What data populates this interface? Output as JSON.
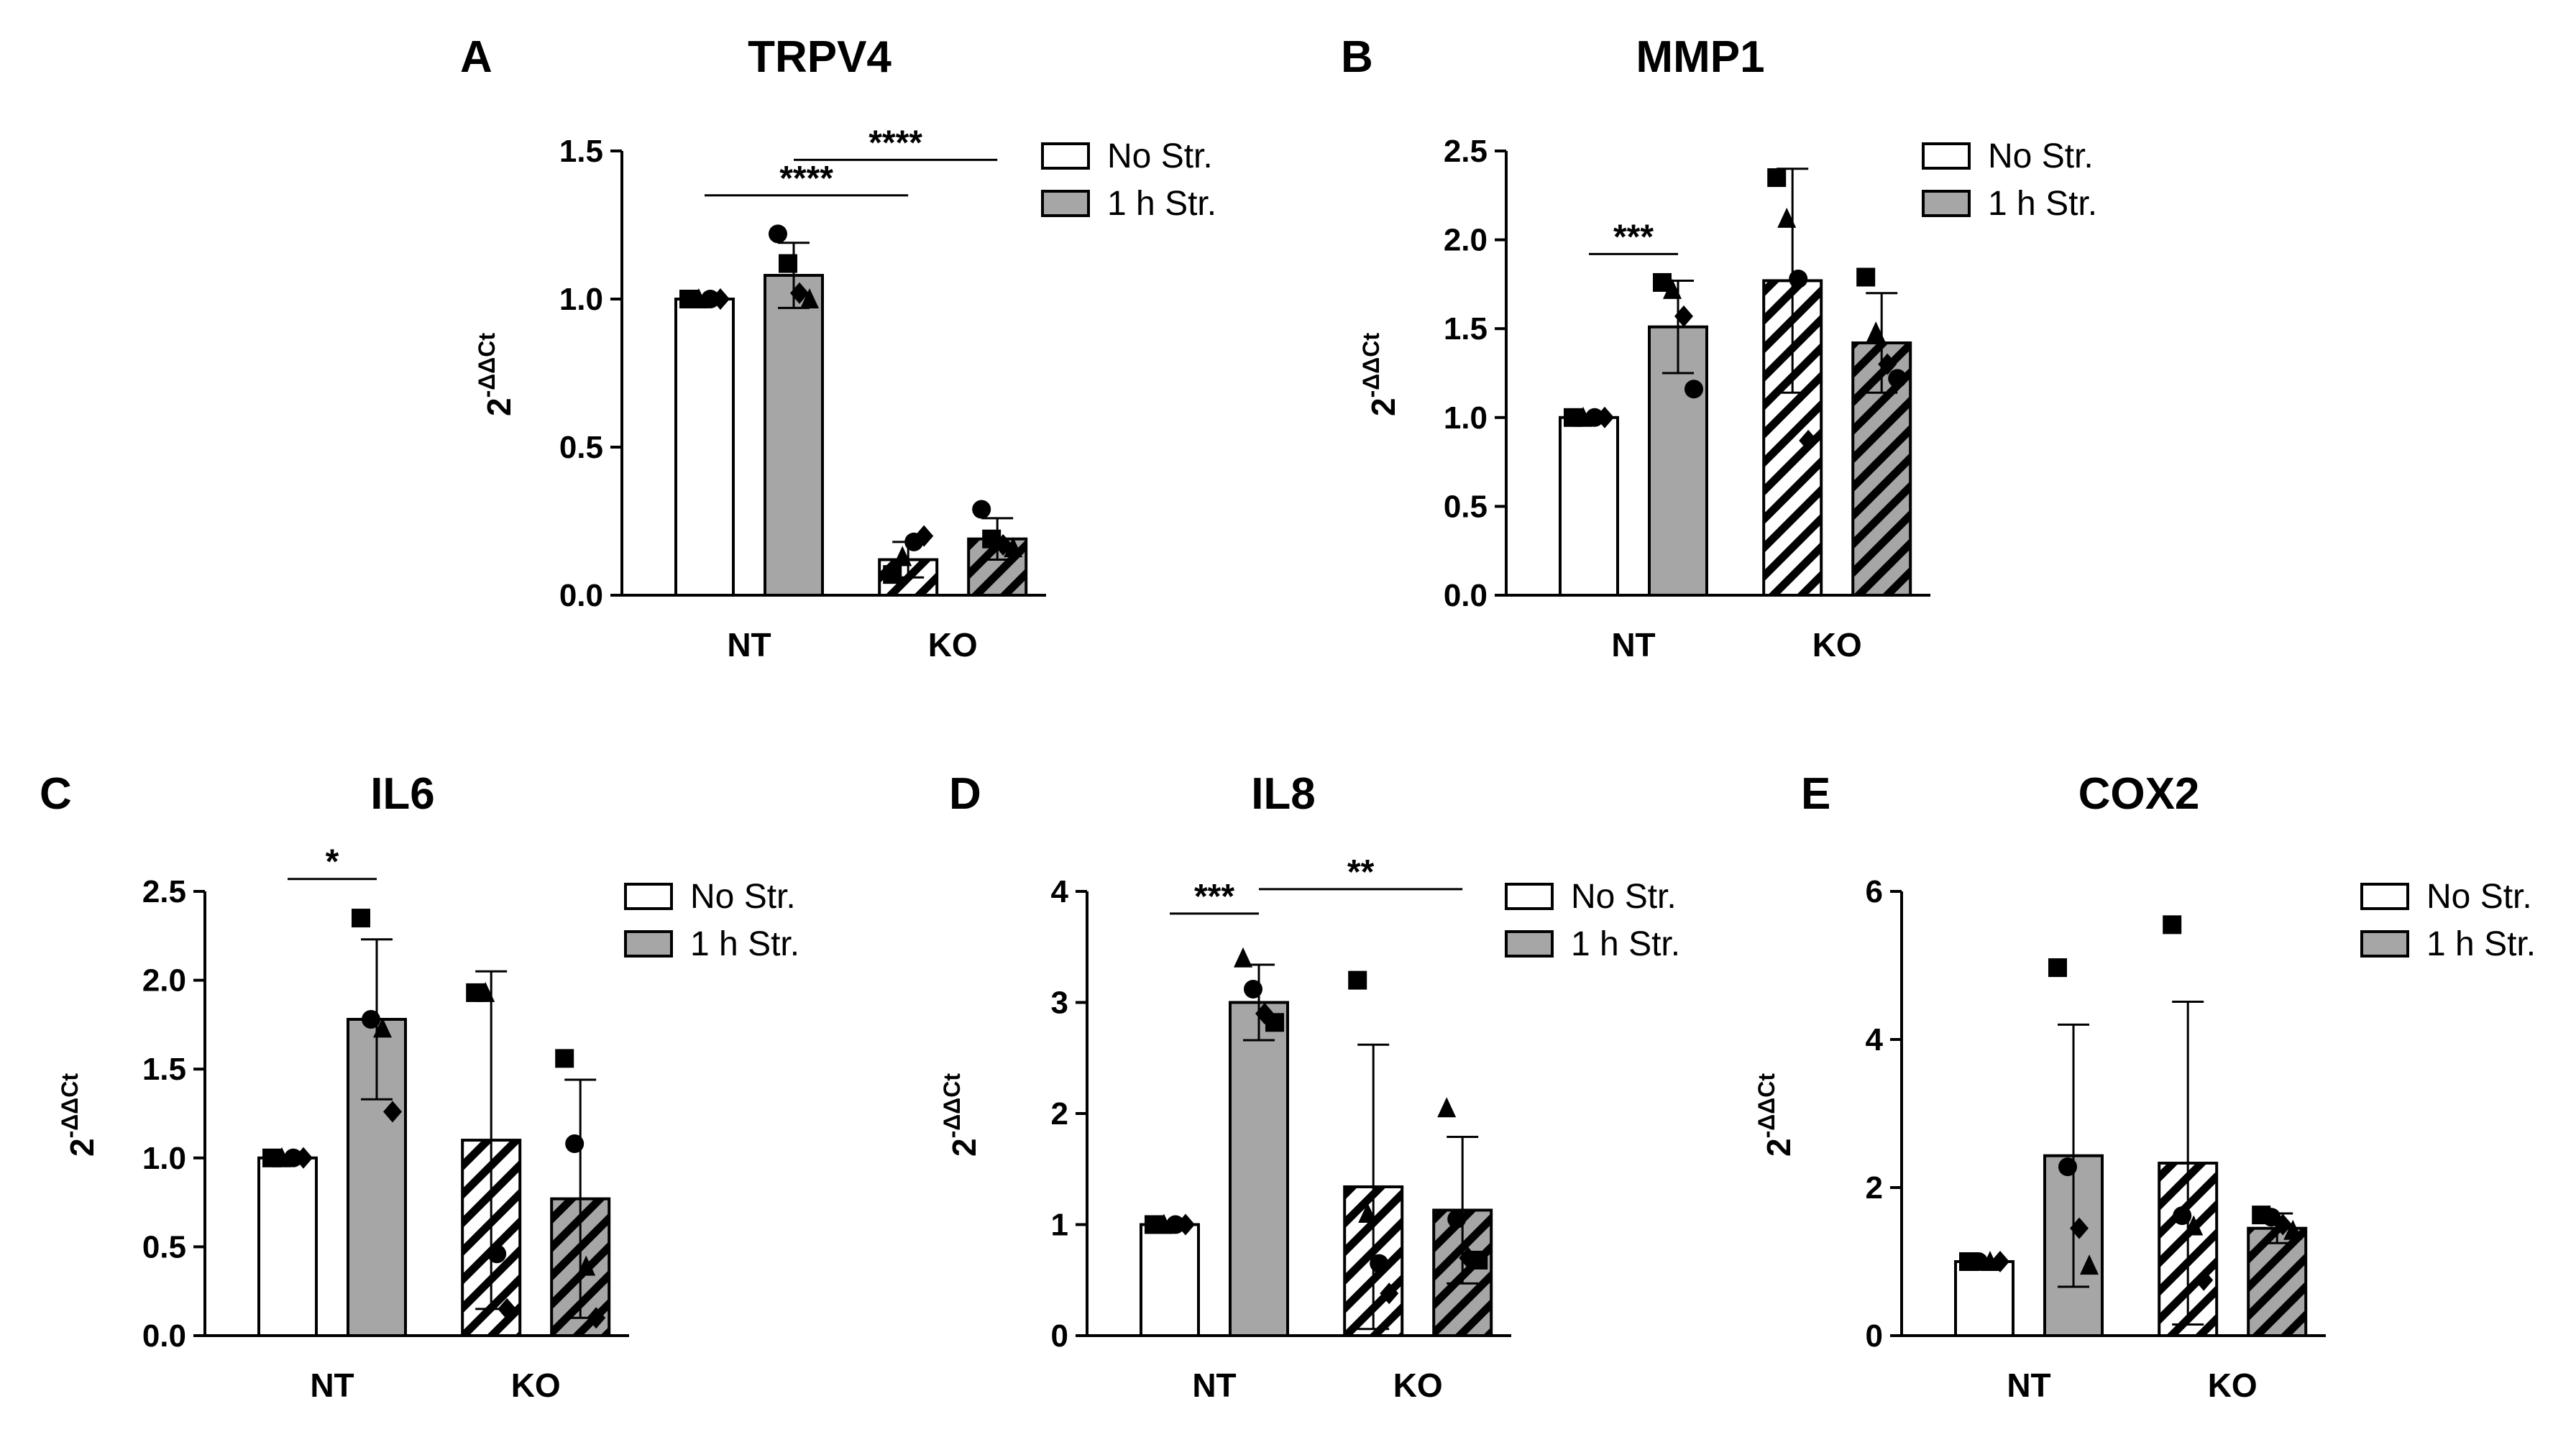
{
  "colors": {
    "no_stretch": "#ffffff",
    "stretch": "#a6a6a6",
    "axis": "#000000"
  },
  "legend": [
    "No Str.",
    "1 h Str."
  ],
  "y_axis_label": {
    "base": "2",
    "exponent": "-ΔΔCt"
  },
  "chart_data": [
    {
      "panel": "A",
      "title": "TRPV4",
      "type": "bar",
      "categories": [
        "NT",
        "KO"
      ],
      "series": [
        {
          "name": "No Str.",
          "values": [
            1.0,
            0.12
          ],
          "errors": [
            0.0,
            0.06
          ],
          "hatched": [
            false,
            true
          ],
          "points": [
            [
              1.0,
              1.0,
              1.0,
              1.0
            ],
            [
              0.07,
              0.13,
              0.18,
              0.2
            ]
          ],
          "markers": [
            "square",
            "triangle",
            "circle",
            "diamond"
          ]
        },
        {
          "name": "1 h Str.",
          "values": [
            1.08,
            0.19
          ],
          "errors": [
            0.11,
            0.07
          ],
          "hatched": [
            false,
            true
          ],
          "points": [
            [
              1.22,
              1.12,
              1.02,
              1.0
            ],
            [
              0.29,
              0.19,
              0.17,
              0.16
            ]
          ],
          "markers": [
            "circle",
            "square",
            "diamond",
            "triangle"
          ]
        }
      ],
      "ylim": [
        0,
        1.5
      ],
      "yticks": [
        "0.0",
        "0.5",
        "1.0",
        "1.5"
      ],
      "ytick_values": [
        0,
        0.5,
        1.0,
        1.5
      ],
      "significance": [
        {
          "label": "****",
          "from": "NT.No Str.",
          "to": "KO.No Str.",
          "y": 1.35
        },
        {
          "label": "****",
          "from": "NT.1 h Str.",
          "to": "KO.1 h Str.",
          "y": 1.47
        }
      ]
    },
    {
      "panel": "B",
      "title": "MMP1",
      "type": "bar",
      "categories": [
        "NT",
        "KO"
      ],
      "series": [
        {
          "name": "No Str.",
          "values": [
            1.0,
            1.77
          ],
          "errors": [
            0.0,
            0.63
          ],
          "hatched": [
            false,
            true
          ],
          "points": [
            [
              1.0,
              1.0,
              1.0,
              1.0
            ],
            [
              2.35,
              2.12,
              1.78,
              0.87
            ]
          ],
          "markers": [
            "square",
            "triangle",
            "circle",
            "diamond"
          ]
        },
        {
          "name": "1 h Str.",
          "values": [
            1.51,
            1.42
          ],
          "errors": [
            0.26,
            0.28
          ],
          "hatched": [
            false,
            true
          ],
          "points": [
            [
              1.76,
              1.72,
              1.57,
              1.16
            ],
            [
              1.79,
              1.48,
              1.3,
              1.22
            ]
          ],
          "markers": [
            "square",
            "triangle",
            "diamond",
            "circle"
          ]
        }
      ],
      "ylim": [
        0,
        2.5
      ],
      "yticks": [
        "0.0",
        "0.5",
        "1.0",
        "1.5",
        "2.0",
        "2.5"
      ],
      "ytick_values": [
        0,
        0.5,
        1.0,
        1.5,
        2.0,
        2.5
      ],
      "significance": [
        {
          "label": "***",
          "from": "NT.No Str.",
          "to": "NT.1 h Str.",
          "y": 1.92
        }
      ]
    },
    {
      "panel": "C",
      "title": "IL6",
      "type": "bar",
      "categories": [
        "NT",
        "KO"
      ],
      "series": [
        {
          "name": "No Str.",
          "values": [
            1.0,
            1.1
          ],
          "errors": [
            0.0,
            0.95
          ],
          "hatched": [
            false,
            true
          ],
          "points": [
            [
              1.0,
              1.0,
              1.0,
              1.0
            ],
            [
              1.93,
              1.93,
              0.46,
              0.15
            ]
          ],
          "markers": [
            "square",
            "triangle",
            "circle",
            "diamond"
          ]
        },
        {
          "name": "1 h Str.",
          "values": [
            1.78,
            0.77
          ],
          "errors": [
            0.45,
            0.67
          ],
          "hatched": [
            false,
            true
          ],
          "points": [
            [
              2.35,
              1.78,
              1.73,
              1.26
            ],
            [
              1.56,
              1.08,
              0.39,
              0.1
            ]
          ],
          "markers": [
            "square",
            "circle",
            "triangle",
            "diamond"
          ]
        }
      ],
      "ylim": [
        0,
        2.5
      ],
      "yticks": [
        "0.0",
        "0.5",
        "1.0",
        "1.5",
        "2.0",
        "2.5"
      ],
      "ytick_values": [
        0,
        0.5,
        1.0,
        1.5,
        2.0,
        2.5
      ],
      "significance": [
        {
          "label": "*",
          "from": "NT.No Str.",
          "to": "NT.1 h Str.",
          "y": 2.57
        }
      ]
    },
    {
      "panel": "D",
      "title": "IL8",
      "type": "bar",
      "categories": [
        "NT",
        "KO"
      ],
      "series": [
        {
          "name": "No Str.",
          "values": [
            1.0,
            1.34
          ],
          "errors": [
            0.0,
            1.28
          ],
          "hatched": [
            false,
            true
          ],
          "points": [
            [
              1.0,
              1.0,
              1.0,
              1.0
            ],
            [
              3.2,
              1.1,
              0.65,
              0.38
            ]
          ],
          "markers": [
            "square",
            "triangle",
            "circle",
            "diamond"
          ]
        },
        {
          "name": "1 h Str.",
          "values": [
            3.0,
            1.13
          ],
          "errors": [
            0.34,
            0.66
          ],
          "hatched": [
            false,
            true
          ],
          "points": [
            [
              3.4,
              3.12,
              2.9,
              2.82
            ],
            [
              2.05,
              1.05,
              0.7,
              0.68
            ]
          ],
          "markers": [
            "triangle",
            "circle",
            "diamond",
            "square"
          ]
        }
      ],
      "ylim": [
        0,
        4
      ],
      "yticks": [
        "0",
        "1",
        "2",
        "3",
        "4"
      ],
      "ytick_values": [
        0,
        1,
        2,
        3,
        4
      ],
      "significance": [
        {
          "label": "***",
          "from": "NT.No Str.",
          "to": "NT.1 h Str.",
          "y": 3.8
        },
        {
          "label": "**",
          "from": "NT.1 h Str.",
          "to": "KO.1 h Str.",
          "y": 4.02
        }
      ]
    },
    {
      "panel": "E",
      "title": "COX2",
      "type": "bar",
      "categories": [
        "NT",
        "KO"
      ],
      "series": [
        {
          "name": "No Str.",
          "values": [
            1.0,
            2.33
          ],
          "errors": [
            0.0,
            2.18
          ],
          "hatched": [
            false,
            true
          ],
          "points": [
            [
              1.0,
              1.0,
              1.0,
              1.0
            ],
            [
              5.55,
              1.62,
              1.48,
              0.75
            ]
          ],
          "markers": [
            "square",
            "circle",
            "triangle",
            "diamond"
          ]
        },
        {
          "name": "1 h Str.",
          "values": [
            2.43,
            1.45
          ],
          "errors": [
            1.77,
            0.2
          ],
          "hatched": [
            false,
            true
          ],
          "points": [
            [
              4.97,
              2.28,
              1.45,
              0.95
            ],
            [
              1.63,
              1.6,
              1.5,
              1.42
            ]
          ],
          "markers": [
            "square",
            "circle",
            "diamond",
            "triangle"
          ]
        }
      ],
      "ylim": [
        0,
        6
      ],
      "yticks": [
        "0",
        "2",
        "4",
        "6"
      ],
      "ytick_values": [
        0,
        2,
        4,
        6
      ],
      "significance": []
    }
  ]
}
